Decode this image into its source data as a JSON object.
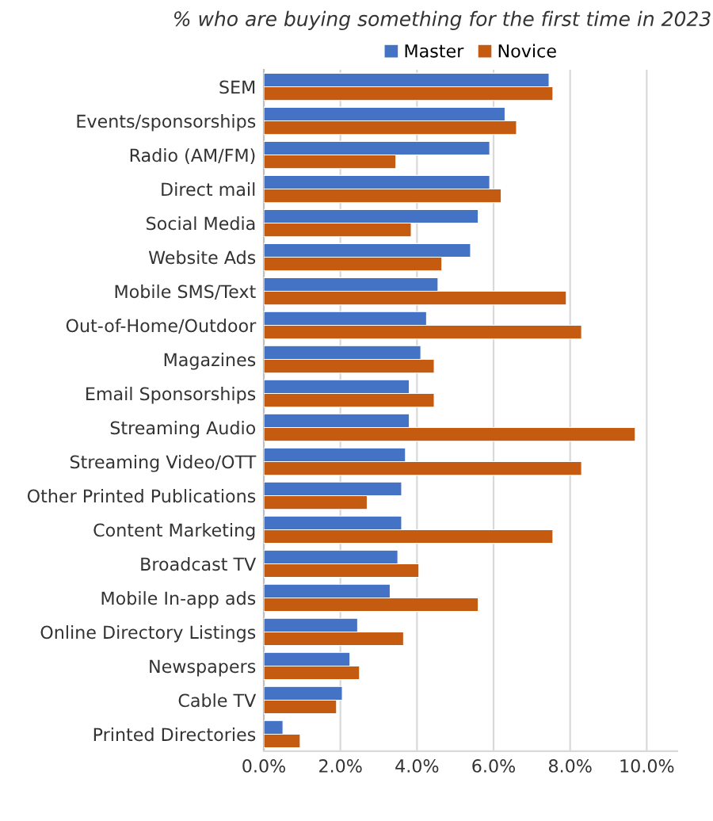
{
  "chart_data": {
    "type": "bar",
    "orientation": "horizontal",
    "title": "% who are buying something for the first time in 2023",
    "categories": [
      "SEM",
      "Events/sponsorships",
      "Radio (AM/FM)",
      "Direct mail",
      "Social Media",
      "Website Ads",
      "Mobile SMS/Text",
      "Out-of-Home/Outdoor",
      "Magazines",
      "Email Sponsorships",
      "Streaming Audio",
      "Streaming Video/OTT",
      "Other Printed Publications",
      "Content Marketing",
      "Broadcast TV",
      "Mobile In-app ads",
      "Online Directory Listings",
      "Newspapers",
      "Cable TV",
      "Printed Directories"
    ],
    "series": [
      {
        "name": "Master",
        "color": "#4472c4",
        "values": [
          7.45,
          6.3,
          5.9,
          5.9,
          5.6,
          5.4,
          4.55,
          4.25,
          4.1,
          3.8,
          3.8,
          3.7,
          3.6,
          3.6,
          3.5,
          3.3,
          2.45,
          2.25,
          2.05,
          0.5
        ]
      },
      {
        "name": "Novice",
        "color": "#c55a11",
        "values": [
          7.55,
          6.6,
          3.45,
          6.2,
          3.85,
          4.65,
          7.9,
          8.3,
          4.45,
          4.45,
          9.7,
          8.3,
          2.7,
          7.55,
          4.05,
          5.6,
          3.65,
          2.5,
          1.9,
          0.95
        ]
      }
    ],
    "xlim": [
      0,
      10.8
    ],
    "xticks": [
      {
        "value": 0,
        "label": "0.0%"
      },
      {
        "value": 2,
        "label": "2.0%"
      },
      {
        "value": 4,
        "label": "4.0%"
      },
      {
        "value": 6,
        "label": "6.0%"
      },
      {
        "value": 8,
        "label": "8.0%"
      },
      {
        "value": 10,
        "label": "10.0%"
      }
    ],
    "grid": "x",
    "legend": "top"
  }
}
